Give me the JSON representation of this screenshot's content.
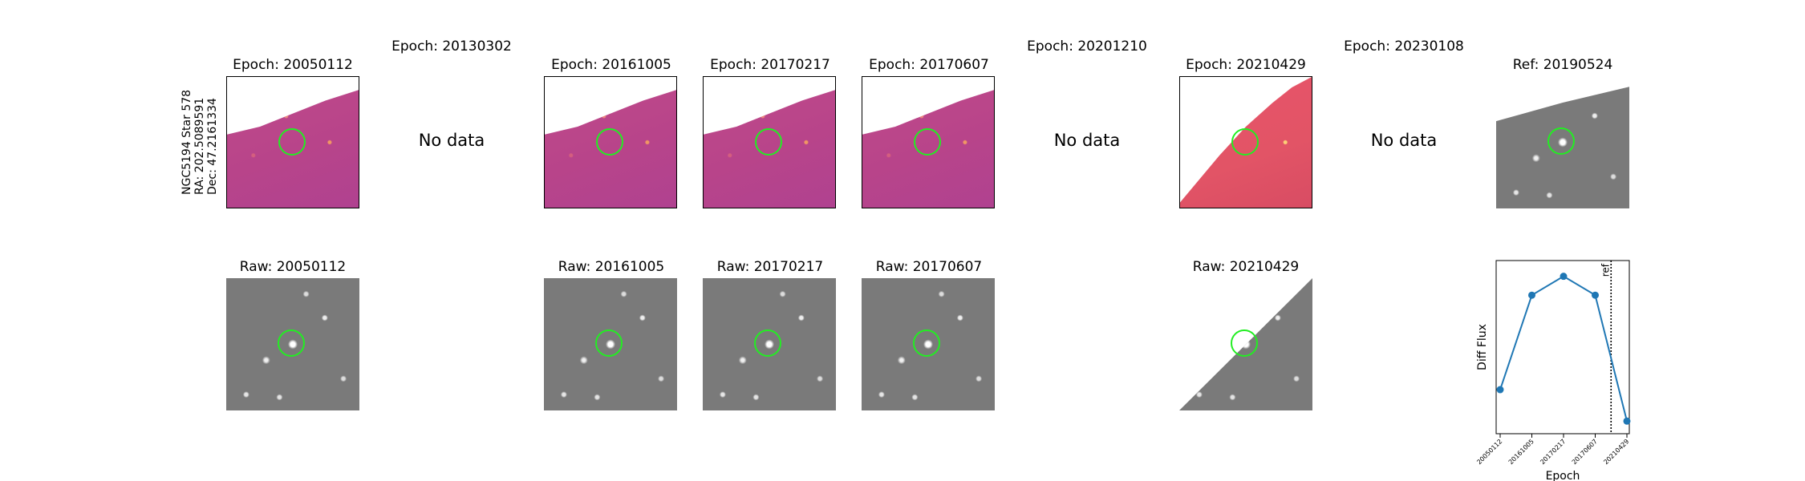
{
  "star_info": {
    "name": "NGC5194 Star 578",
    "ra": "RA: 202.5089591",
    "dec": "Dec: 47.2161334"
  },
  "no_data_label": "No data",
  "top_row": [
    {
      "title": "Epoch: 20050112",
      "state": "image"
    },
    {
      "title": "Epoch: 20130302",
      "state": "no-data"
    },
    {
      "title": "Epoch: 20161005",
      "state": "image"
    },
    {
      "title": "Epoch: 20170217",
      "state": "image"
    },
    {
      "title": "Epoch: 20170607",
      "state": "image"
    },
    {
      "title": "Epoch: 20201210",
      "state": "no-data"
    },
    {
      "title": "Epoch: 20210429",
      "state": "image"
    },
    {
      "title": "Epoch: 20230108",
      "state": "no-data"
    },
    {
      "title": "Ref: 20190524",
      "state": "image"
    }
  ],
  "bottom_row": [
    {
      "title": "Raw: 20050112"
    },
    {
      "title": "Raw: 20161005"
    },
    {
      "title": "Raw: 20170217"
    },
    {
      "title": "Raw: 20170607"
    },
    {
      "title": "Raw: 20210429"
    }
  ],
  "chart_data": {
    "type": "line",
    "title": "",
    "xlabel": "Epoch",
    "ylabel": "Diff Flux",
    "categories": [
      "20050112",
      "20161005",
      "20170217",
      "20170607",
      "20210429"
    ],
    "values": [
      0.18,
      0.78,
      0.9,
      0.78,
      -0.02
    ],
    "ylim": [
      -0.1,
      1.0
    ],
    "ref_line": {
      "label": "ref",
      "position_between": [
        "20170607",
        "20210429"
      ],
      "fraction": 0.5
    },
    "series_color": "#1f77b4",
    "grid": false
  }
}
